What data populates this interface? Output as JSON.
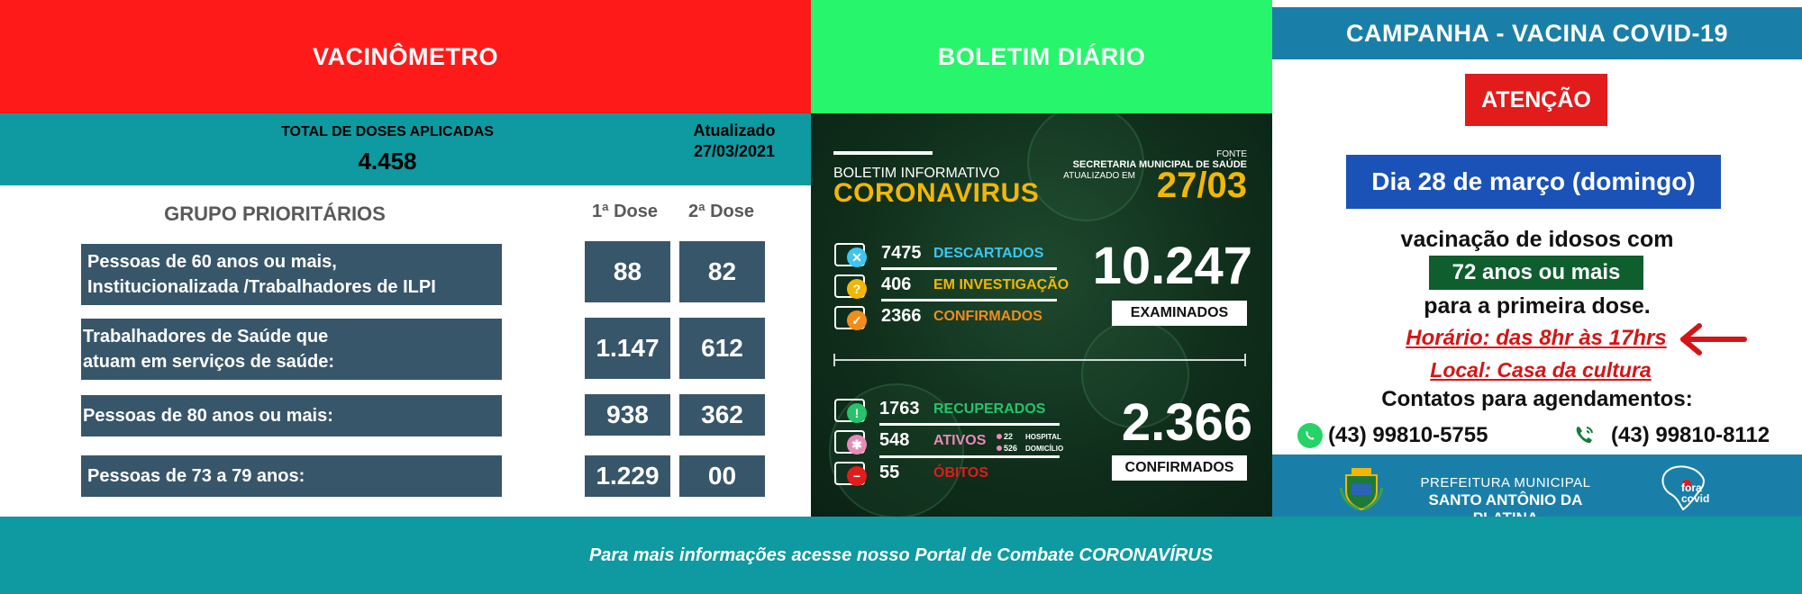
{
  "vacinometro": {
    "title": "VACINÔMETRO",
    "total_label": "TOTAL DE DOSES APLICADAS",
    "total_value": "4.458",
    "updated_label": "Atualizado",
    "updated_date": "27/03/2021",
    "group_header": "GRUPO PRIORITÁRIOS",
    "dose1_header": "1ª Dose",
    "dose2_header": "2ª Dose",
    "rows": [
      {
        "label_line1": "Pessoas de 60 anos ou mais,",
        "label_line2": "Institucionalizada /Trabalhadores de ILPI",
        "dose1": "88",
        "dose2": "82"
      },
      {
        "label_line1": "Trabalhadores de Saúde que",
        "label_line2": "atuam em serviços de saúde:",
        "dose1": "1.147",
        "dose2": "612"
      },
      {
        "label_line1": "Pessoas de 80 anos ou mais:",
        "label_line2": "",
        "dose1": "938",
        "dose2": "362"
      },
      {
        "label_line1": "Pessoas de 73 a 79 anos:",
        "label_line2": "",
        "dose1": "1.229",
        "dose2": "00"
      }
    ]
  },
  "boletim": {
    "title": "BOLETIM DIÁRIO",
    "small_title": "BOLETIM INFORMATIVO",
    "big_title": "CORONAVIRUS",
    "fonte": "FONTE",
    "secretaria": "SECRETARIA MUNICIPAL DE SAÚDE",
    "atualizado_em": "ATUALIZADO EM",
    "date": "27/03",
    "stats_top": [
      {
        "value": "7475",
        "label": "DESCARTADOS",
        "color": "#3ec6f0",
        "icon": "x-icon"
      },
      {
        "value": "406",
        "label": "EM INVESTIGAÇÃO",
        "color": "#f2b705",
        "icon": "question-icon"
      },
      {
        "value": "2366",
        "label": "CONFIRMADOS",
        "color": "#f28c1b",
        "icon": "check-icon"
      }
    ],
    "examinados_value": "10.247",
    "examinados_label": "EXAMINADOS",
    "stats_bottom": [
      {
        "value": "1763",
        "label": "RECUPERADOS",
        "color": "#27c26a",
        "icon": "exclamation-icon"
      },
      {
        "value": "548",
        "label": "ATIVOS",
        "color": "#e98ab8",
        "icon": "asterisk-icon"
      },
      {
        "value": "55",
        "label": "ÓBITOS",
        "color": "#e21b1b",
        "icon": "minus-icon"
      }
    ],
    "ativos_hospital_value": "22",
    "ativos_hospital_label": "HOSPITAL",
    "ativos_domicilio_value": "526",
    "ativos_domicilio_label": "DOMICÍLIO",
    "confirmados_value": "2.366",
    "confirmados_label": "CONFIRMADOS"
  },
  "campanha": {
    "title": "CAMPANHA - VACINA COVID-19",
    "atencao": "ATENÇÃO",
    "dia": "Dia 28 de março (domingo)",
    "vacinacao": "vacinação de idosos com",
    "idade": "72 anos ou mais",
    "primeira": "para a primeira dose.",
    "horario": "Horário: das 8hr às 17hrs",
    "local": "Local: Casa da cultura",
    "contatos_title": "Contatos para agendamentos:",
    "phone1": "(43) 99810-5755",
    "phone2": "(43) 99810-8112",
    "pref_line1": "PREFEITURA MUNICIPAL",
    "pref_line2": "SANTO ANTÔNIO DA PLATINA",
    "fora_line1": "fora",
    "fora_line2": "covid"
  },
  "footer": {
    "text": "Para mais informações acesse nosso Portal de Combate CORONAVÍRUS"
  },
  "colors": {
    "red": "#ff1a1a",
    "green": "#27f56b",
    "teal": "#0e9aa0",
    "blue": "#1a7fa8",
    "slate": "#38566a"
  }
}
